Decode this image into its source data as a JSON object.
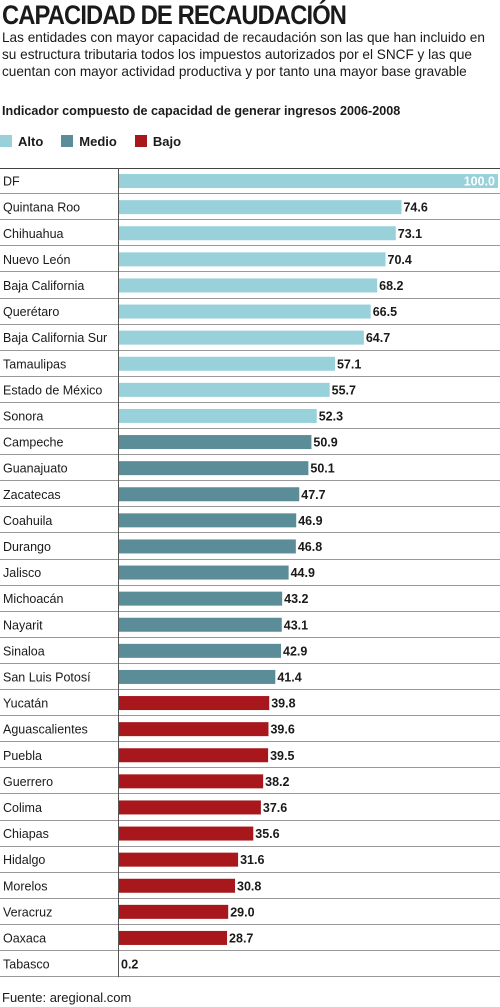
{
  "header": {
    "title": "CAPACIDAD DE RECAUDACIÓN",
    "description": "Las entidades con mayor capacidad de recaudación son las que han incluido en su estructura tributaria todos los impuestos autorizados por el SNCF y las que cuentan con mayor actividad productiva y por tanto una mayor base gravable",
    "subtitle": "Indicador compuesto de capacidad de generar ingresos 2006-2008"
  },
  "legend": [
    {
      "label": "Alto",
      "color": "#98d1da"
    },
    {
      "label": "Medio",
      "color": "#5a8d97"
    },
    {
      "label": "Bajo",
      "color": "#a7171b"
    }
  ],
  "source": "Fuente: aregional.com",
  "chart_data": {
    "type": "bar",
    "orientation": "horizontal",
    "title": "Indicador compuesto de capacidad de generar ingresos 2006-2008",
    "xlim": [
      0,
      100
    ],
    "grid": false,
    "legend_position": "top-left",
    "categories": [
      "DF",
      "Quintana Roo",
      "Chihuahua",
      "Nuevo León",
      "Baja California",
      "Querétaro",
      "Baja California Sur",
      "Tamaulipas",
      "Estado de México",
      "Sonora",
      "Campeche",
      "Guanajuato",
      "Zacatecas",
      "Coahuila",
      "Durango",
      "Jalisco",
      "Michoacán",
      "Nayarit",
      "Sinaloa",
      "San Luis Potosí",
      "Yucatán",
      "Aguascalientes",
      "Puebla",
      "Guerrero",
      "Colima",
      "Chiapas",
      "Hidalgo",
      "Morelos",
      "Veracruz",
      "Oaxaca",
      "Tabasco"
    ],
    "values": [
      100.0,
      74.6,
      73.1,
      70.4,
      68.2,
      66.5,
      64.7,
      57.1,
      55.7,
      52.3,
      50.9,
      50.1,
      47.7,
      46.9,
      46.8,
      44.9,
      43.2,
      43.1,
      42.9,
      41.4,
      39.8,
      39.6,
      39.5,
      38.2,
      37.6,
      35.6,
      31.6,
      30.8,
      29.0,
      28.7,
      0.2
    ],
    "value_labels": [
      "100.0",
      "74.6",
      "73.1",
      "70.4",
      "68.2",
      "66.5",
      "64.7",
      "57.1",
      "55.7",
      "52.3",
      "50.9",
      "50.1",
      "47.7",
      "46.9",
      "46.8",
      "44.9",
      "43.2",
      "43.1",
      "42.9",
      "41.4",
      "39.8",
      "39.6",
      "39.5",
      "38.2",
      "37.6",
      "35.6",
      "31.6",
      "30.8",
      "29.0",
      "28.7",
      "0.2"
    ],
    "groups": [
      "Alto",
      "Alto",
      "Alto",
      "Alto",
      "Alto",
      "Alto",
      "Alto",
      "Alto",
      "Alto",
      "Alto",
      "Medio",
      "Medio",
      "Medio",
      "Medio",
      "Medio",
      "Medio",
      "Medio",
      "Medio",
      "Medio",
      "Medio",
      "Bajo",
      "Bajo",
      "Bajo",
      "Bajo",
      "Bajo",
      "Bajo",
      "Bajo",
      "Bajo",
      "Bajo",
      "Bajo",
      "Bajo"
    ]
  }
}
